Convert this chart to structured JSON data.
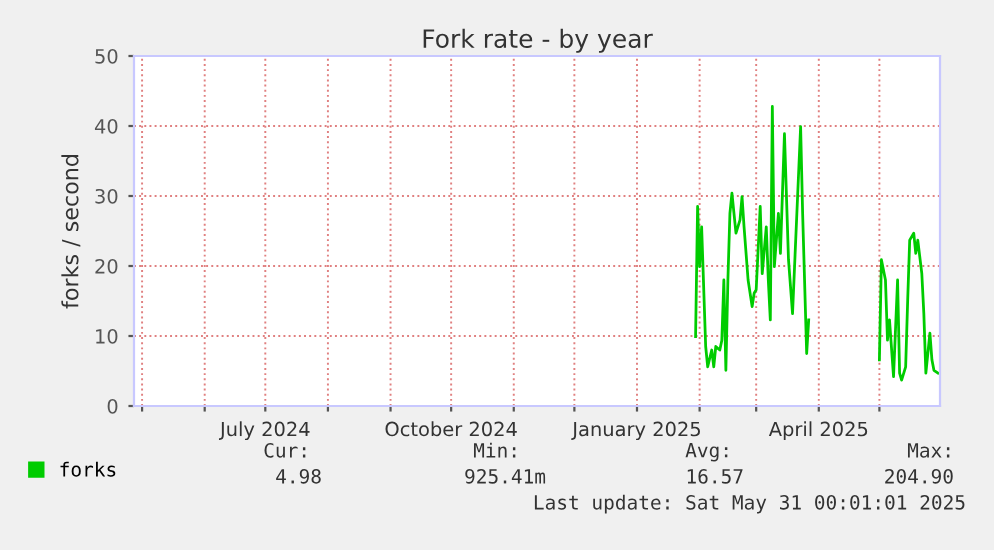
{
  "chart_data": {
    "type": "line",
    "title": "Fork rate - by year",
    "ylabel": "forks / second",
    "x": [
      "2025-01-30",
      "2025-01-31",
      "2025-02-01",
      "2025-02-02",
      "2025-02-04",
      "2025-02-05",
      "2025-02-07",
      "2025-02-08",
      "2025-02-09",
      "2025-02-11",
      "2025-02-12",
      "2025-02-13",
      "2025-02-14",
      "2025-02-15",
      "2025-02-16",
      "2025-02-17",
      "2025-02-19",
      "2025-02-21",
      "2025-02-22",
      "2025-02-23",
      "2025-02-25",
      "2025-02-27",
      "2025-02-28",
      "2025-03-01",
      "2025-03-03",
      "2025-03-04",
      "2025-03-06",
      "2025-03-07",
      "2025-03-08",
      "2025-03-09",
      "2025-03-10",
      "2025-03-12",
      "2025-03-13",
      "2025-03-15",
      "2025-03-17",
      "2025-03-19",
      "2025-03-20",
      "2025-03-23",
      "2025-03-24",
      "2025-03-26",
      "2025-03-27",
      "2025-04-11",
      "2025-05-01",
      "2025-05-02",
      "2025-05-04",
      "2025-05-05",
      "2025-05-06",
      "2025-05-08",
      "2025-05-10",
      "2025-05-11",
      "2025-05-12",
      "2025-05-14",
      "2025-05-15",
      "2025-05-16",
      "2025-05-18",
      "2025-05-19",
      "2025-05-20",
      "2025-05-22",
      "2025-05-23",
      "2025-05-24",
      "2025-05-26",
      "2025-05-27",
      "2025-05-28",
      "2025-05-30"
    ],
    "series": [
      {
        "name": "forks",
        "color": "#00cc00",
        "values": [
          9.9,
          28.5,
          19.9,
          25.6,
          8.5,
          5.6,
          8,
          5.6,
          8.5,
          8,
          9.4,
          18,
          5.1,
          18,
          27.5,
          30.4,
          24.7,
          26.6,
          29.9,
          25.6,
          18,
          14.2,
          16.1,
          16.6,
          28.5,
          18.9,
          25.6,
          18,
          12.3,
          42.8,
          19.9,
          27.5,
          21.8,
          38.9,
          20.9,
          13.2,
          19.9,
          39.9,
          27.5,
          7.5,
          12.3,
          null,
          6.6,
          20.9,
          18,
          9.4,
          12.3,
          4.2,
          18,
          4.7,
          3.7,
          5.6,
          15.1,
          23.7,
          24.7,
          21.8,
          23.7,
          18.9,
          13.2,
          4.7,
          10.4,
          6.6,
          5.1,
          4.7
        ]
      }
    ],
    "xlim": [
      "2024-04-27",
      "2025-05-31"
    ],
    "xticks": [
      {
        "value": "2024-05-01",
        "label": null
      },
      {
        "value": "2024-06-01",
        "label": null
      },
      {
        "value": "2024-07-01",
        "label": "July 2024"
      },
      {
        "value": "2024-08-01",
        "label": null
      },
      {
        "value": "2024-09-01",
        "label": null
      },
      {
        "value": "2024-10-01",
        "label": "October 2024"
      },
      {
        "value": "2024-11-01",
        "label": null
      },
      {
        "value": "2024-12-01",
        "label": null
      },
      {
        "value": "2025-01-01",
        "label": "January 2025"
      },
      {
        "value": "2025-02-01",
        "label": null
      },
      {
        "value": "2025-03-01",
        "label": null
      },
      {
        "value": "2025-04-01",
        "label": "April 2025"
      },
      {
        "value": "2025-05-01",
        "label": null
      }
    ],
    "ylim": [
      0,
      50
    ],
    "yticks": [
      0,
      10,
      20,
      30,
      40,
      50
    ],
    "grid": true,
    "legend": "bottom left",
    "annotations": [
      "Cur:",
      "4.98",
      "Min:",
      "925.41m",
      "Avg:",
      "16.57",
      "Max:",
      "204.90",
      "Last update: Sat May 31 00:01:01 2025"
    ]
  }
}
